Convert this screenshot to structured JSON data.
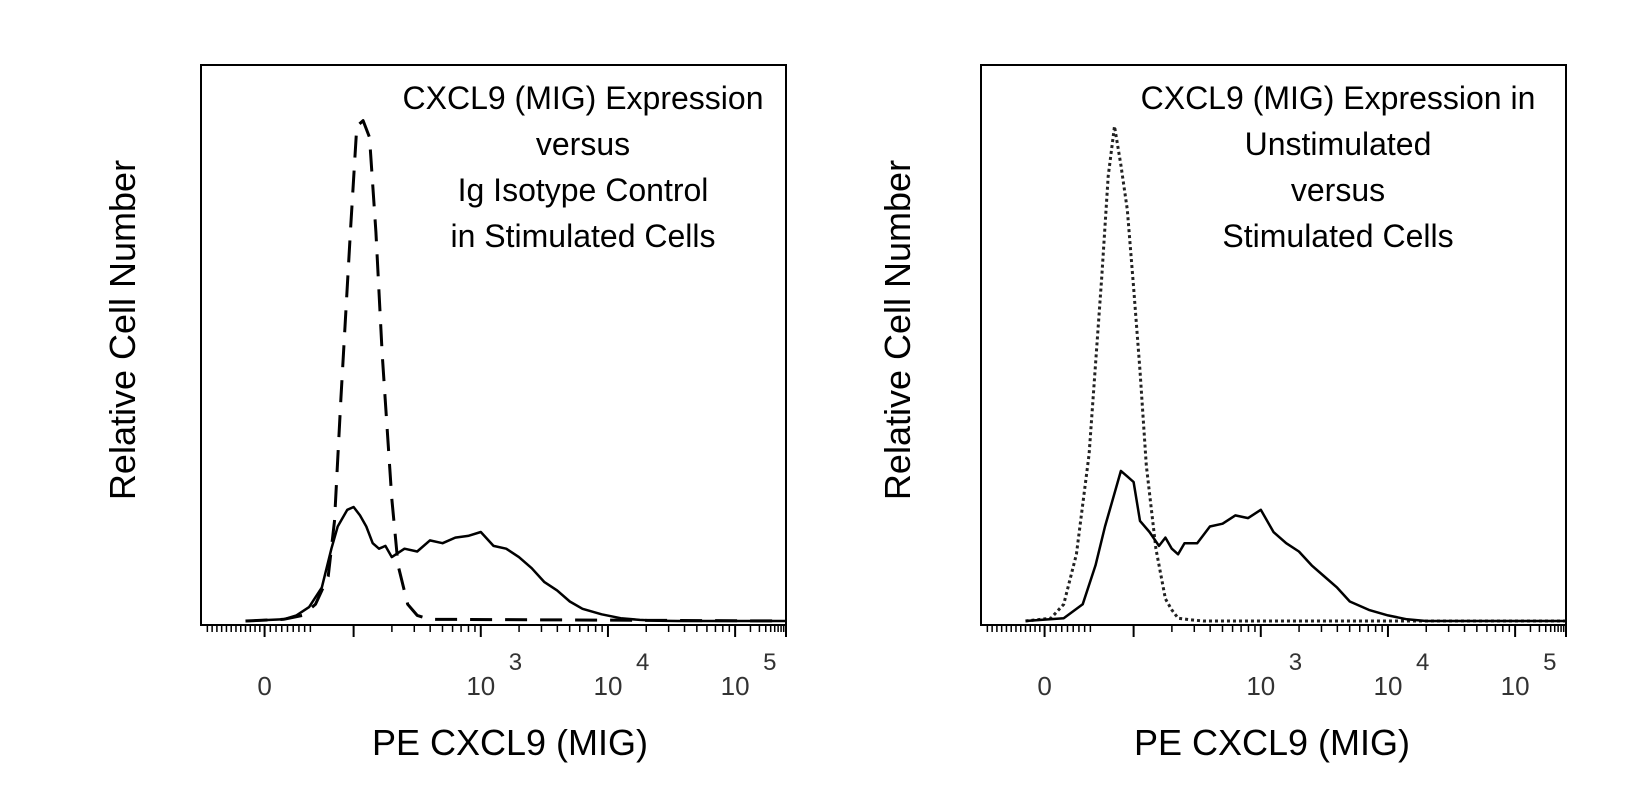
{
  "chart_data": [
    {
      "type": "line",
      "subtype": "flow-cytometry-histogram",
      "title_lines": [
        "CXCL9 (MIG) Expression",
        "versus",
        "Ig Isotype Control",
        "in Stimulated Cells"
      ],
      "xlabel": "PE CXCL9 (MIG)",
      "ylabel": "Relative Cell Number",
      "x_scale": "logicle",
      "xlim": [
        0,
        9.2
      ],
      "ylim": [
        0,
        100
      ],
      "tick_labels": [
        {
          "base": "0",
          "exp": "",
          "x": 1
        },
        {
          "base": "10",
          "exp": "3",
          "x": 4.4
        },
        {
          "base": "10",
          "exp": "4",
          "x": 6.4
        },
        {
          "base": "10",
          "exp": "5",
          "x": 8.4
        }
      ],
      "series": [
        {
          "name": "Ig Isotype Control",
          "style": "dashed",
          "x": [
            0.7,
            1.3,
            1.6,
            1.8,
            2.0,
            2.1,
            2.2,
            2.35,
            2.45,
            2.55,
            2.65,
            2.75,
            2.85,
            3.0,
            3.1,
            3.25,
            3.4,
            3.6,
            9.2
          ],
          "y": [
            0,
            0.3,
            1,
            3,
            8,
            18,
            40,
            70,
            89,
            90,
            87,
            70,
            48,
            22,
            10,
            3,
            1,
            0.3,
            0
          ]
        },
        {
          "name": "CXCL9 (MIG) Stimulated",
          "style": "solid",
          "x": [
            0.7,
            1.3,
            1.5,
            1.7,
            1.9,
            2.05,
            2.15,
            2.3,
            2.4,
            2.5,
            2.6,
            2.7,
            2.8,
            2.9,
            3.0,
            3.2,
            3.4,
            3.6,
            3.8,
            4.0,
            4.2,
            4.4,
            4.6,
            4.8,
            5.0,
            5.2,
            5.4,
            5.6,
            5.8,
            6.0,
            6.3,
            6.6,
            6.9,
            7.2,
            7.5,
            9.2
          ],
          "y": [
            0,
            0.3,
            1,
            2.5,
            6,
            13,
            17,
            20,
            20.5,
            19,
            17,
            14,
            13,
            13.5,
            11.5,
            13,
            12.5,
            14.5,
            14,
            15,
            15.3,
            16,
            13.5,
            13,
            11.5,
            9.5,
            7,
            5.5,
            3.5,
            2.2,
            1.2,
            0.5,
            0.2,
            0.05,
            0,
            0
          ]
        }
      ]
    },
    {
      "type": "line",
      "subtype": "flow-cytometry-histogram",
      "title_lines": [
        "CXCL9 (MIG) Expression in",
        "Unstimulated",
        "versus",
        "Stimulated Cells"
      ],
      "xlabel": "PE CXCL9 (MIG)",
      "ylabel": "Relative Cell Number",
      "x_scale": "logicle",
      "xlim": [
        0,
        9.2
      ],
      "ylim": [
        0,
        100
      ],
      "tick_labels": [
        {
          "base": "0",
          "exp": "",
          "x": 1
        },
        {
          "base": "10",
          "exp": "3",
          "x": 4.4
        },
        {
          "base": "10",
          "exp": "4",
          "x": 6.4
        },
        {
          "base": "10",
          "exp": "5",
          "x": 8.4
        }
      ],
      "series": [
        {
          "name": "Unstimulated",
          "style": "dotted",
          "x": [
            0.7,
            1.1,
            1.3,
            1.5,
            1.7,
            1.9,
            2.0,
            2.1,
            2.2,
            2.3,
            2.4,
            2.5,
            2.6,
            2.75,
            2.9,
            3.0,
            3.1,
            3.3,
            3.5,
            9.2
          ],
          "y": [
            0,
            0.5,
            3,
            12,
            30,
            62,
            80,
            89,
            82,
            74,
            60,
            45,
            28,
            13,
            4,
            2,
            0.5,
            0.2,
            0,
            0
          ]
        },
        {
          "name": "Stimulated",
          "style": "solid",
          "x": [
            0.7,
            1.3,
            1.6,
            1.8,
            1.95,
            2.05,
            2.2,
            2.3,
            2.4,
            2.5,
            2.65,
            2.8,
            2.9,
            3.0,
            3.1,
            3.2,
            3.4,
            3.6,
            3.8,
            4.0,
            4.2,
            4.4,
            4.6,
            4.8,
            5.0,
            5.2,
            5.4,
            5.6,
            5.8,
            6.1,
            6.4,
            6.7,
            7.0,
            9.2
          ],
          "y": [
            0,
            0.5,
            3,
            10,
            17,
            21,
            27,
            26,
            25,
            18,
            16,
            13.5,
            15,
            13,
            12,
            14,
            14,
            17,
            17.5,
            19,
            18.5,
            20,
            16,
            14,
            12.5,
            10,
            8,
            6,
            3.5,
            2,
            1,
            0.3,
            0,
            0
          ]
        }
      ]
    }
  ]
}
